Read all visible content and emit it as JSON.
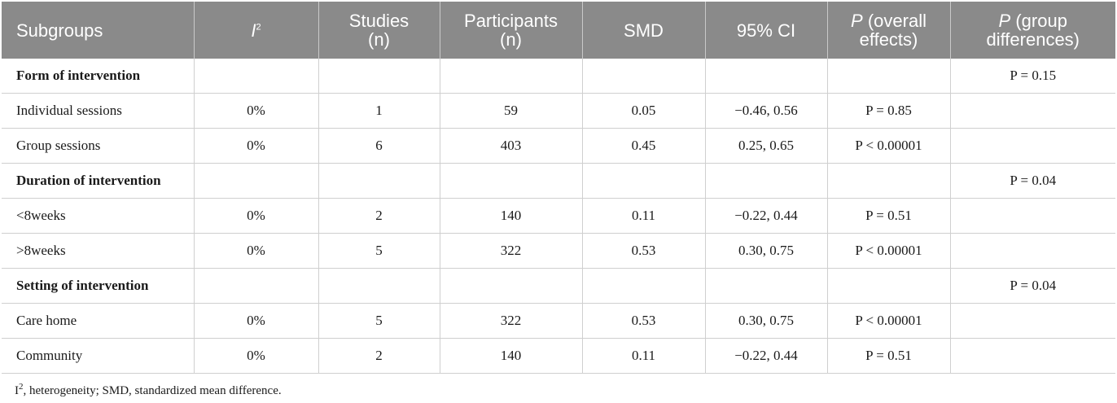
{
  "table": {
    "headers": {
      "subgroups": "Subgroups",
      "i2_base": "I",
      "i2_sup": "2",
      "studies_1": "Studies",
      "studies_2": "(n)",
      "participants_1": "Participants",
      "participants_2": "(n)",
      "smd": "SMD",
      "ci": "95% CI",
      "p_overall_p": "P",
      "p_overall_1": " (overall",
      "p_overall_2": "effects)",
      "p_group_p": "P",
      "p_group_1": " (group",
      "p_group_2": "differences)"
    },
    "groups": [
      {
        "label": "Form of intervention",
        "p_group": "P = 0.15",
        "rows": [
          {
            "subgroup": "Individual sessions",
            "i2": "0%",
            "studies": "1",
            "participants": "59",
            "smd": "0.05",
            "ci": "−0.46, 0.56",
            "p_overall": "P = 0.85"
          },
          {
            "subgroup": "Group sessions",
            "i2": "0%",
            "studies": "6",
            "participants": "403",
            "smd": "0.45",
            "ci": "0.25, 0.65",
            "p_overall": "P < 0.00001"
          }
        ]
      },
      {
        "label": "Duration of intervention",
        "p_group": "P = 0.04",
        "rows": [
          {
            "subgroup": "<8weeks",
            "i2": "0%",
            "studies": "2",
            "participants": "140",
            "smd": "0.11",
            "ci": "−0.22, 0.44",
            "p_overall": "P = 0.51"
          },
          {
            "subgroup": ">8weeks",
            "i2": "0%",
            "studies": "5",
            "participants": "322",
            "smd": "0.53",
            "ci": "0.30, 0.75",
            "p_overall": "P < 0.00001"
          }
        ]
      },
      {
        "label": "Setting of intervention",
        "p_group": "P = 0.04",
        "rows": [
          {
            "subgroup": "Care home",
            "i2": "0%",
            "studies": "5",
            "participants": "322",
            "smd": "0.53",
            "ci": "0.30, 0.75",
            "p_overall": "P < 0.00001"
          },
          {
            "subgroup": "Community",
            "i2": "0%",
            "studies": "2",
            "participants": "140",
            "smd": "0.11",
            "ci": "−0.22, 0.44",
            "p_overall": "P = 0.51"
          }
        ]
      }
    ]
  },
  "footnote": {
    "i_base": "I",
    "i_sup": "2",
    "text": ", heterogeneity; SMD, standardized mean difference."
  },
  "colors": {
    "header_bg": "#8a8a8a",
    "header_text": "#ffffff",
    "grid": "#cfcfcf"
  }
}
